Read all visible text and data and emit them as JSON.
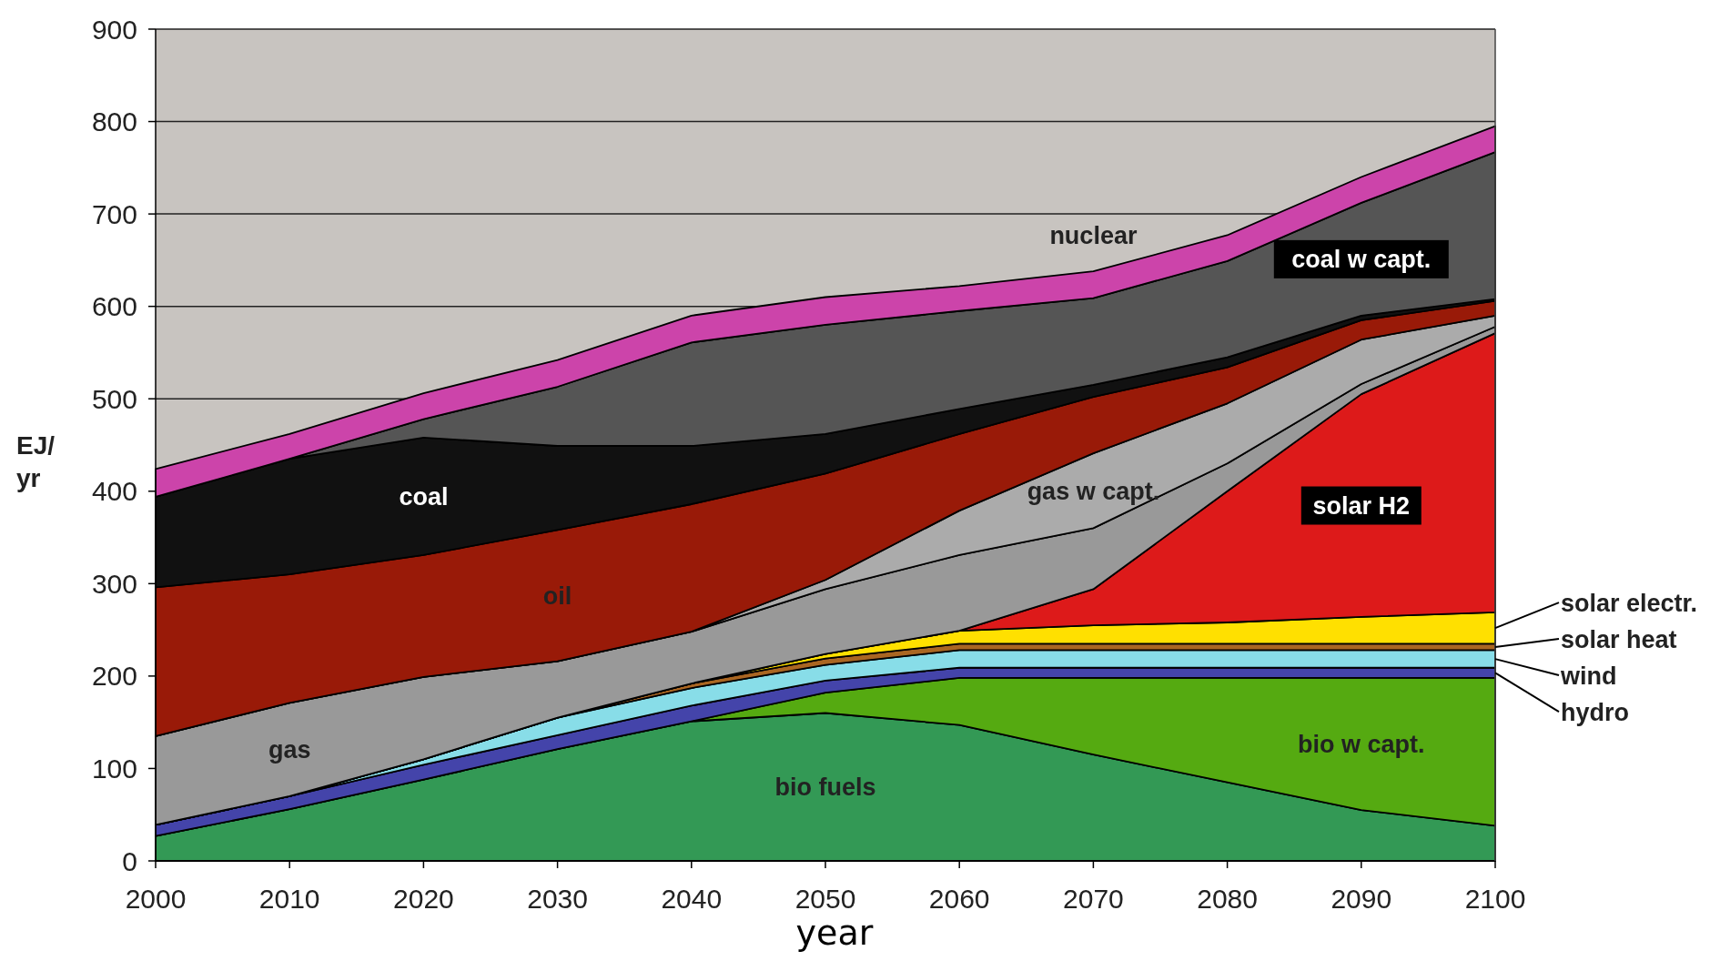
{
  "chart_data": {
    "type": "area",
    "stacked": true,
    "xlabel": "year",
    "ylabel": "EJ/ yr",
    "x": [
      2000,
      2010,
      2020,
      2030,
      2040,
      2050,
      2060,
      2070,
      2080,
      2090,
      2100
    ],
    "xlim": [
      2000,
      2100
    ],
    "xticks": [
      2000,
      2010,
      2020,
      2030,
      2040,
      2050,
      2060,
      2070,
      2080,
      2090,
      2100
    ],
    "ylim": [
      0,
      900
    ],
    "yticks": [
      0,
      100,
      200,
      300,
      400,
      500,
      600,
      700,
      800,
      900
    ],
    "grid": "y",
    "legend": "right",
    "series": [
      {
        "name": "bio fuels",
        "color": "#339955",
        "values": [
          27,
          56,
          88,
          121,
          151,
          160,
          147,
          115,
          85,
          55,
          38
        ]
      },
      {
        "name": "bio w capt.",
        "color": "#55aa11",
        "values": [
          0,
          0,
          0,
          0,
          0,
          22,
          51,
          83,
          113,
          143,
          160
        ]
      },
      {
        "name": "hydro",
        "color": "#4444aa",
        "values": [
          12,
          14,
          16,
          15,
          17,
          13,
          11,
          11,
          11,
          11,
          11
        ]
      },
      {
        "name": "wind",
        "color": "#88dde8",
        "values": [
          0,
          0,
          6,
          19,
          19,
          17,
          19,
          19,
          19,
          19,
          19
        ]
      },
      {
        "name": "solar heat",
        "color": "#aa6622",
        "values": [
          0,
          0,
          0,
          0,
          5,
          7,
          7,
          7,
          7,
          7,
          7
        ]
      },
      {
        "name": "solar electr.",
        "color": "#ffe000",
        "values": [
          0,
          0,
          0,
          0,
          0,
          5,
          14,
          20,
          23,
          29,
          34
        ]
      },
      {
        "name": "solar H2",
        "color": "#dd1a1a",
        "values": [
          0,
          0,
          0,
          0,
          0,
          0,
          0,
          39,
          142,
          241,
          302
        ]
      },
      {
        "name": "gas",
        "color": "#999999",
        "values": [
          96,
          101,
          89,
          61,
          56,
          70,
          82,
          66,
          30,
          11,
          7
        ]
      },
      {
        "name": "gas w capt.",
        "color": "#ababab",
        "values": [
          0,
          0,
          0,
          0,
          0,
          10,
          48,
          81,
          65,
          48,
          12
        ]
      },
      {
        "name": "oil",
        "color": "#991a08",
        "values": [
          161,
          139,
          132,
          142,
          138,
          115,
          83,
          61,
          39,
          21,
          16
        ]
      },
      {
        "name": "coal",
        "color": "#111111",
        "values": [
          98,
          125,
          127,
          91,
          63,
          43,
          27,
          13,
          11,
          5,
          2
        ]
      },
      {
        "name": "coal w capt.",
        "color": "#555555",
        "values": [
          0,
          0,
          20,
          64,
          112,
          118,
          106,
          94,
          104,
          122,
          159
        ]
      },
      {
        "name": "nuclear",
        "color": "#cc44aa",
        "values": [
          30,
          27,
          28,
          29,
          29,
          30,
          27,
          29,
          28,
          28,
          28
        ]
      }
    ]
  }
}
